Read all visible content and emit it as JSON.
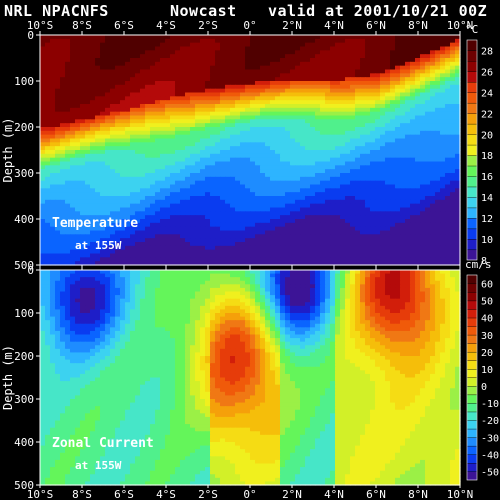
{
  "header": {
    "model": "NRL NPACNFS",
    "kind": "Nowcast",
    "valid": "valid at 2001/10/21 00Z"
  },
  "chart_data": [
    {
      "type": "heatmap",
      "panel": "temperature",
      "label_line1": "Temperature",
      "label_line2": "at 155W",
      "ylabel": "Depth (m)",
      "x_ticks": [
        "10°S",
        "8°S",
        "6°S",
        "4°S",
        "2°S",
        "0°",
        "2°N",
        "4°N",
        "6°N",
        "8°N",
        "10°N"
      ],
      "y_ticks": [
        "0",
        "100",
        "200",
        "300",
        "400",
        "500"
      ],
      "xlim": [
        -10,
        10
      ],
      "ylim": [
        0,
        500
      ],
      "units": "°C",
      "colorbar": {
        "levels": [
          8,
          9,
          10,
          11,
          12,
          13,
          14,
          15,
          16,
          17,
          18,
          19,
          20,
          21,
          22,
          23,
          24,
          25,
          26,
          27,
          28,
          29
        ],
        "labels": [
          "8",
          "10",
          "12",
          "14",
          "16",
          "18",
          "20",
          "22",
          "24",
          "26",
          "28"
        ]
      },
      "thermocline_depth_m": [
        {
          "lat": -10,
          "depth": 265
        },
        {
          "lat": -8,
          "depth": 245
        },
        {
          "lat": -6,
          "depth": 225
        },
        {
          "lat": -4,
          "depth": 200
        },
        {
          "lat": -2,
          "depth": 178
        },
        {
          "lat": 0,
          "depth": 165
        },
        {
          "lat": 2,
          "depth": 160
        },
        {
          "lat": 4,
          "depth": 160
        },
        {
          "lat": 6,
          "depth": 145
        },
        {
          "lat": 8,
          "depth": 110
        },
        {
          "lat": 10,
          "depth": 70
        }
      ]
    },
    {
      "type": "heatmap",
      "panel": "zonal_current",
      "label_line1": "Zonal Current",
      "label_line2": "at 155W",
      "ylabel": "Depth (m)",
      "x_ticks": [
        "10°S",
        "8°S",
        "6°S",
        "4°S",
        "2°S",
        "0°",
        "2°N",
        "4°N",
        "6°N",
        "8°N",
        "10°N"
      ],
      "y_ticks": [
        "0",
        "100",
        "200",
        "300",
        "400",
        "500"
      ],
      "xlim": [
        -10,
        10
      ],
      "ylim": [
        0,
        500
      ],
      "units": "cm/s",
      "colorbar": {
        "levels": [
          -55,
          -50,
          -45,
          -40,
          -35,
          -30,
          -25,
          -20,
          -15,
          -10,
          -5,
          0,
          5,
          10,
          15,
          20,
          25,
          30,
          35,
          40,
          45,
          50,
          55,
          60,
          65
        ],
        "labels": [
          "-50",
          "-40",
          "-30",
          "-20",
          "-10",
          "0",
          "10",
          "20",
          "30",
          "40",
          "50",
          "60"
        ]
      },
      "features": [
        {
          "name": "eastward core",
          "lat": -0.5,
          "depth": 180,
          "value": 45
        },
        {
          "name": "westward core",
          "lat": 2,
          "depth": 40,
          "value": -50
        },
        {
          "name": "eastward core",
          "lat": 7,
          "depth": 40,
          "value": 60
        },
        {
          "name": "westward band",
          "lat": -8,
          "depth": 60,
          "value": -40
        }
      ]
    }
  ]
}
